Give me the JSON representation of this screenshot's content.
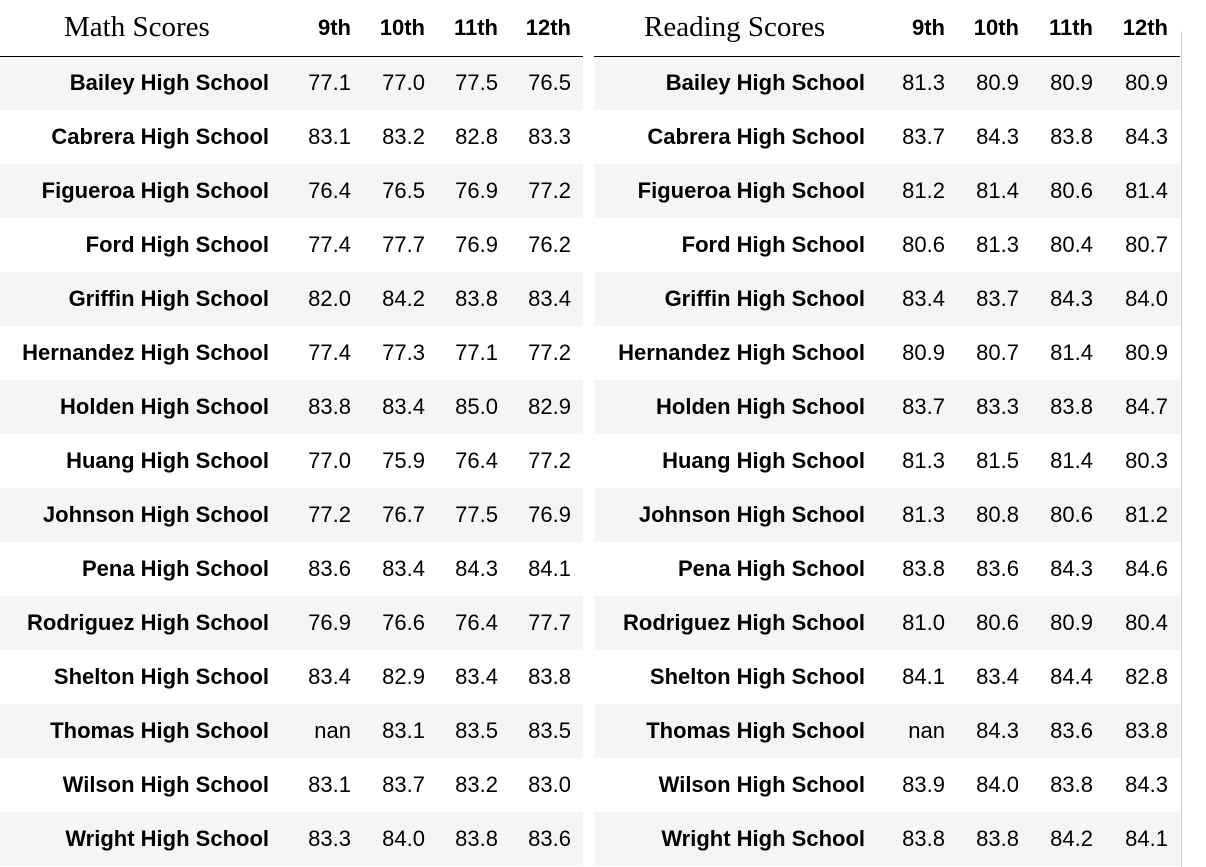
{
  "math": {
    "title": "Math Scores",
    "columns": [
      "9th",
      "10th",
      "11th",
      "12th"
    ],
    "rows": [
      {
        "school": "Bailey High School",
        "values": [
          "77.1",
          "77.0",
          "77.5",
          "76.5"
        ]
      },
      {
        "school": "Cabrera High School",
        "values": [
          "83.1",
          "83.2",
          "82.8",
          "83.3"
        ]
      },
      {
        "school": "Figueroa High School",
        "values": [
          "76.4",
          "76.5",
          "76.9",
          "77.2"
        ]
      },
      {
        "school": "Ford High School",
        "values": [
          "77.4",
          "77.7",
          "76.9",
          "76.2"
        ]
      },
      {
        "school": "Griffin High School",
        "values": [
          "82.0",
          "84.2",
          "83.8",
          "83.4"
        ]
      },
      {
        "school": "Hernandez High School",
        "values": [
          "77.4",
          "77.3",
          "77.1",
          "77.2"
        ]
      },
      {
        "school": "Holden High School",
        "values": [
          "83.8",
          "83.4",
          "85.0",
          "82.9"
        ]
      },
      {
        "school": "Huang High School",
        "values": [
          "77.0",
          "75.9",
          "76.4",
          "77.2"
        ]
      },
      {
        "school": "Johnson High School",
        "values": [
          "77.2",
          "76.7",
          "77.5",
          "76.9"
        ]
      },
      {
        "school": "Pena High School",
        "values": [
          "83.6",
          "83.4",
          "84.3",
          "84.1"
        ]
      },
      {
        "school": "Rodriguez High School",
        "values": [
          "76.9",
          "76.6",
          "76.4",
          "77.7"
        ]
      },
      {
        "school": "Shelton High School",
        "values": [
          "83.4",
          "82.9",
          "83.4",
          "83.8"
        ]
      },
      {
        "school": "Thomas High School",
        "values": [
          "nan",
          "83.1",
          "83.5",
          "83.5"
        ]
      },
      {
        "school": "Wilson High School",
        "values": [
          "83.1",
          "83.7",
          "83.2",
          "83.0"
        ]
      },
      {
        "school": "Wright High School",
        "values": [
          "83.3",
          "84.0",
          "83.8",
          "83.6"
        ]
      }
    ]
  },
  "reading": {
    "title": "Reading Scores",
    "columns": [
      "9th",
      "10th",
      "11th",
      "12th"
    ],
    "rows": [
      {
        "school": "Bailey High School",
        "values": [
          "81.3",
          "80.9",
          "80.9",
          "80.9"
        ]
      },
      {
        "school": "Cabrera High School",
        "values": [
          "83.7",
          "84.3",
          "83.8",
          "84.3"
        ]
      },
      {
        "school": "Figueroa High School",
        "values": [
          "81.2",
          "81.4",
          "80.6",
          "81.4"
        ]
      },
      {
        "school": "Ford High School",
        "values": [
          "80.6",
          "81.3",
          "80.4",
          "80.7"
        ]
      },
      {
        "school": "Griffin High School",
        "values": [
          "83.4",
          "83.7",
          "84.3",
          "84.0"
        ]
      },
      {
        "school": "Hernandez High School",
        "values": [
          "80.9",
          "80.7",
          "81.4",
          "80.9"
        ]
      },
      {
        "school": "Holden High School",
        "values": [
          "83.7",
          "83.3",
          "83.8",
          "84.7"
        ]
      },
      {
        "school": "Huang High School",
        "values": [
          "81.3",
          "81.5",
          "81.4",
          "80.3"
        ]
      },
      {
        "school": "Johnson High School",
        "values": [
          "81.3",
          "80.8",
          "80.6",
          "81.2"
        ]
      },
      {
        "school": "Pena High School",
        "values": [
          "83.8",
          "83.6",
          "84.3",
          "84.6"
        ]
      },
      {
        "school": "Rodriguez High School",
        "values": [
          "81.0",
          "80.6",
          "80.9",
          "80.4"
        ]
      },
      {
        "school": "Shelton High School",
        "values": [
          "84.1",
          "83.4",
          "84.4",
          "82.8"
        ]
      },
      {
        "school": "Thomas High School",
        "values": [
          "nan",
          "84.3",
          "83.6",
          "83.8"
        ]
      },
      {
        "school": "Wilson High School",
        "values": [
          "83.9",
          "84.0",
          "83.8",
          "84.3"
        ]
      },
      {
        "school": "Wright High School",
        "values": [
          "83.8",
          "83.8",
          "84.2",
          "84.1"
        ]
      }
    ]
  }
}
